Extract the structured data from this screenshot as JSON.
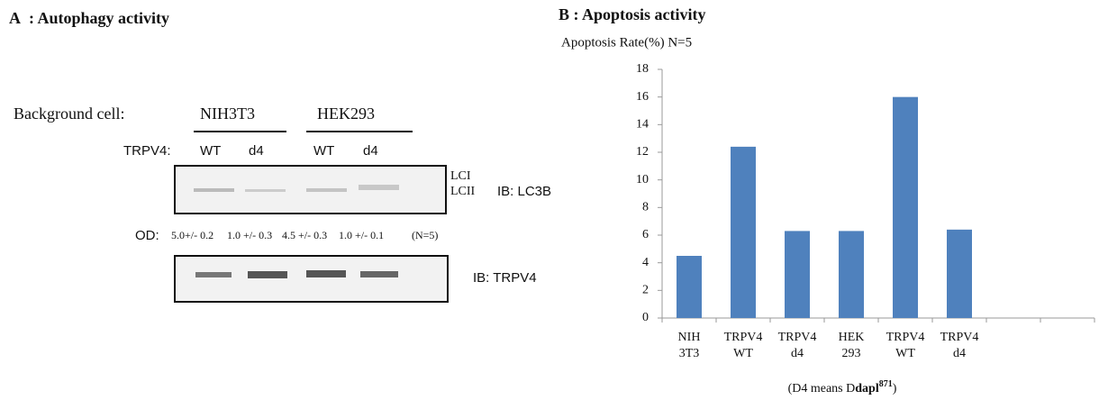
{
  "panel_a": {
    "title": "A  : Autophagy activity",
    "background_label": "Background cell:",
    "cell_lines": [
      "NIH3T3",
      "HEK293"
    ],
    "trpv4_label": "TRPV4:",
    "lanes": [
      "WT",
      "d4",
      "WT",
      "d4"
    ],
    "band_labels": [
      "LCI",
      "LCII"
    ],
    "blot_labels": [
      "IB: LC3B",
      "IB: TRPV4"
    ],
    "od_label": "OD:",
    "od_values": [
      "5.0+/- 0.2",
      "1.0 +/- 0.3",
      "4.5 +/- 0.3",
      "1.0 +/- 0.1",
      "(N=5)"
    ]
  },
  "chart_data": {
    "type": "bar",
    "title": "B : Apoptosis activity",
    "y_label": "Apoptosis Rate(%) N=5",
    "categories": [
      [
        "NIH",
        "3T3"
      ],
      [
        "TRPV4",
        "WT"
      ],
      [
        "TRPV4",
        "d4"
      ],
      [
        "HEK",
        "293"
      ],
      [
        "TRPV4",
        "WT"
      ],
      [
        "TRPV4",
        "d4"
      ],
      null,
      null
    ],
    "values": [
      4.5,
      12.4,
      6.3,
      6.3,
      16,
      6.4,
      null,
      null
    ],
    "color": "#4f81bd",
    "ylim": [
      0,
      18
    ],
    "yticks": [
      0,
      2,
      4,
      6,
      8,
      10,
      12,
      14,
      16,
      18
    ],
    "grid": false,
    "note": {
      "prefix": "(D4 means D",
      "bold": "dapl",
      "sup": "871",
      "suffix": ")"
    }
  }
}
